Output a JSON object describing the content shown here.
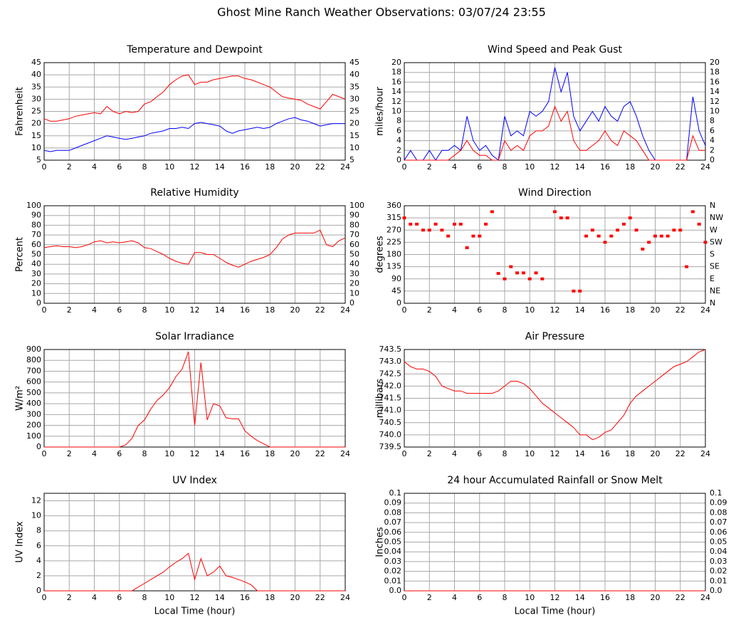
{
  "title": "Ghost Mine Ranch Weather Observations: 03/07/24 23:55",
  "chart_data": [
    {
      "type": "line",
      "title": "Temperature and Dewpoint",
      "y_label": "Fahrenheit",
      "right_axis": true,
      "grid": true,
      "x": [
        0,
        0.5,
        1,
        1.5,
        2,
        2.5,
        3,
        3.5,
        4,
        4.5,
        5,
        5.5,
        6,
        6.5,
        7,
        7.5,
        8,
        8.5,
        9,
        9.5,
        10,
        10.5,
        11,
        11.5,
        12,
        12.5,
        13,
        13.5,
        14,
        14.5,
        15,
        15.5,
        16,
        16.5,
        17,
        17.5,
        18,
        18.5,
        19,
        19.5,
        20,
        20.5,
        21,
        21.5,
        22,
        22.5,
        23,
        23.5,
        24
      ],
      "xlim": [
        0,
        24
      ],
      "xticks": [
        0,
        2,
        4,
        6,
        8,
        10,
        12,
        14,
        16,
        18,
        20,
        22,
        24
      ],
      "ylim": [
        5,
        45
      ],
      "yticks": [
        5,
        10,
        15,
        20,
        25,
        30,
        35,
        40,
        45
      ],
      "series": [
        {
          "color": "#ff0000",
          "values": [
            22,
            21,
            21,
            21.5,
            22,
            23,
            23.5,
            24,
            24.5,
            24,
            27,
            25,
            24,
            25,
            24.5,
            25,
            28,
            29,
            31,
            33,
            36,
            38,
            39.5,
            40,
            36,
            37,
            37,
            38,
            38.5,
            39,
            39.5,
            39.5,
            38.5,
            38,
            37,
            36,
            35,
            33,
            31,
            30.5,
            30,
            29.5,
            28,
            27,
            26,
            29,
            32,
            31,
            30
          ]
        },
        {
          "color": "#0000ff",
          "values": [
            9,
            8.5,
            9,
            9,
            9,
            10,
            11,
            12,
            13,
            14,
            15,
            14.5,
            14,
            13.5,
            14,
            14.5,
            15,
            16,
            16.5,
            17,
            18,
            18,
            18.5,
            18,
            20,
            20.5,
            20,
            19.5,
            19,
            17,
            16,
            17,
            17.5,
            18,
            18.5,
            18,
            18.5,
            20,
            21,
            22,
            22.5,
            21.5,
            21,
            20,
            19,
            19.5,
            20,
            20,
            20
          ]
        }
      ]
    },
    {
      "type": "line",
      "title": "Wind Speed and Peak Gust",
      "y_label": "miles/hour",
      "right_axis": true,
      "grid": true,
      "x": [
        0,
        0.5,
        1,
        1.5,
        2,
        2.5,
        3,
        3.5,
        4,
        4.5,
        5,
        5.5,
        6,
        6.5,
        7,
        7.5,
        8,
        8.5,
        9,
        9.5,
        10,
        10.5,
        11,
        11.5,
        12,
        12.5,
        13,
        13.5,
        14,
        14.5,
        15,
        15.5,
        16,
        16.5,
        17,
        17.5,
        18,
        18.5,
        19,
        19.5,
        20,
        20.5,
        21,
        21.5,
        22,
        22.5,
        23,
        23.5,
        24
      ],
      "xlim": [
        0,
        24
      ],
      "xticks": [
        0,
        2,
        4,
        6,
        8,
        10,
        12,
        14,
        16,
        18,
        20,
        22,
        24
      ],
      "ylim": [
        0,
        20
      ],
      "yticks": [
        0,
        2,
        4,
        6,
        8,
        10,
        12,
        14,
        16,
        18,
        20
      ],
      "series": [
        {
          "color": "#0000ff",
          "values": [
            0,
            2,
            0,
            0,
            2,
            0,
            2,
            2,
            3,
            2,
            9,
            4,
            2,
            3,
            1,
            0,
            9,
            5,
            6,
            5,
            10,
            9,
            10,
            12,
            19,
            14,
            18,
            9,
            6,
            8,
            10,
            8,
            11,
            9,
            8,
            11,
            12,
            9,
            5,
            2,
            0,
            0,
            0,
            0,
            0,
            0,
            13,
            6,
            3
          ]
        },
        {
          "color": "#ff0000",
          "values": [
            0,
            0,
            0,
            0,
            0,
            0,
            0,
            0,
            1,
            2,
            4,
            2,
            1,
            1,
            0,
            0,
            4,
            2,
            3,
            2,
            5,
            6,
            6,
            7,
            11,
            8,
            10,
            4,
            2,
            2,
            3,
            4,
            6,
            4,
            3,
            6,
            5,
            4,
            2,
            0,
            0,
            0,
            0,
            0,
            0,
            0,
            5,
            2,
            2
          ]
        }
      ]
    },
    {
      "type": "line",
      "title": "Relative Humidity",
      "y_label": "Percent",
      "right_axis": true,
      "grid": true,
      "x": [
        0,
        0.5,
        1,
        1.5,
        2,
        2.5,
        3,
        3.5,
        4,
        4.5,
        5,
        5.5,
        6,
        6.5,
        7,
        7.5,
        8,
        8.5,
        9,
        9.5,
        10,
        10.5,
        11,
        11.5,
        12,
        12.5,
        13,
        13.5,
        14,
        14.5,
        15,
        15.5,
        16,
        16.5,
        17,
        17.5,
        18,
        18.5,
        19,
        19.5,
        20,
        20.5,
        21,
        21.5,
        22,
        22.5,
        23,
        23.5,
        24
      ],
      "xlim": [
        0,
        24
      ],
      "xticks": [
        0,
        2,
        4,
        6,
        8,
        10,
        12,
        14,
        16,
        18,
        20,
        22,
        24
      ],
      "ylim": [
        0,
        100
      ],
      "yticks": [
        0,
        10,
        20,
        30,
        40,
        50,
        60,
        70,
        80,
        90,
        100
      ],
      "series": [
        {
          "color": "#ff0000",
          "values": [
            57,
            58,
            59,
            58,
            58,
            57,
            58,
            60,
            63,
            64,
            62,
            63,
            62,
            63,
            64,
            62,
            57,
            56,
            53,
            50,
            46,
            43,
            41,
            40,
            52,
            52,
            50,
            50,
            46,
            42,
            39,
            37,
            40,
            43,
            45,
            47,
            50,
            57,
            66,
            70,
            72,
            72,
            72,
            72,
            75,
            60,
            58,
            64,
            67
          ]
        }
      ]
    },
    {
      "type": "scatter",
      "title": "Wind Direction",
      "y_label": "degrees",
      "grid": true,
      "x": [
        0,
        0.5,
        1,
        1.5,
        2,
        2.5,
        3,
        3.5,
        4,
        4.5,
        5,
        5.5,
        6,
        6.5,
        7,
        7.5,
        8,
        8.5,
        9,
        9.5,
        10,
        10.5,
        11,
        11.5,
        12,
        12.5,
        13,
        13.5,
        14,
        14.5,
        15,
        15.5,
        16,
        16.5,
        17,
        17.5,
        18,
        18.5,
        19,
        19.5,
        20,
        20.5,
        21,
        21.5,
        22,
        22.5,
        23,
        23.5,
        24
      ],
      "xlim": [
        0,
        24
      ],
      "xticks": [
        0,
        2,
        4,
        6,
        8,
        10,
        12,
        14,
        16,
        18,
        20,
        22,
        24
      ],
      "ylim": [
        0,
        360
      ],
      "yticks": [
        0,
        45,
        90,
        135,
        180,
        225,
        270,
        315,
        360
      ],
      "y2lim": [
        0,
        360
      ],
      "y2ticks": [
        {
          "value": 0,
          "label": "N"
        },
        {
          "value": 45,
          "label": "NE"
        },
        {
          "value": 90,
          "label": "E"
        },
        {
          "value": 135,
          "label": "SE"
        },
        {
          "value": 180,
          "label": "S"
        },
        {
          "value": 225,
          "label": "SW"
        },
        {
          "value": 270,
          "label": "W"
        },
        {
          "value": 315,
          "label": "NW"
        },
        {
          "value": 360,
          "label": "N"
        }
      ],
      "series": [
        {
          "color": "#ff0000",
          "values": [
            315,
            292,
            292,
            270,
            270,
            292,
            270,
            248,
            292,
            292,
            205,
            248,
            248,
            292,
            338,
            110,
            90,
            135,
            112,
            112,
            90,
            112,
            90,
            null,
            338,
            315,
            315,
            45,
            45,
            248,
            270,
            248,
            225,
            248,
            270,
            292,
            315,
            270,
            200,
            225,
            248,
            248,
            248,
            270,
            270,
            135,
            338,
            292,
            225
          ]
        }
      ]
    },
    {
      "type": "line",
      "title": "Solar Irradiance",
      "y_label": "W/m²",
      "grid": true,
      "x": [
        0,
        0.5,
        1,
        1.5,
        2,
        2.5,
        3,
        3.5,
        4,
        4.5,
        5,
        5.5,
        6,
        6.5,
        7,
        7.5,
        8,
        8.5,
        9,
        9.5,
        10,
        10.5,
        11,
        11.5,
        12,
        12.5,
        13,
        13.5,
        14,
        14.5,
        15,
        15.5,
        16,
        16.5,
        17,
        17.5,
        18,
        18.5,
        19,
        19.5,
        20,
        20.5,
        21,
        21.5,
        22,
        22.5,
        23,
        23.5,
        24
      ],
      "xlim": [
        0,
        24
      ],
      "xticks": [
        0,
        2,
        4,
        6,
        8,
        10,
        12,
        14,
        16,
        18,
        20,
        22,
        24
      ],
      "ylim": [
        0,
        900
      ],
      "yticks": [
        0,
        100,
        200,
        300,
        400,
        500,
        600,
        700,
        800,
        900
      ],
      "series": [
        {
          "color": "#ff0000",
          "values": [
            0,
            0,
            0,
            0,
            0,
            0,
            0,
            0,
            0,
            0,
            0,
            0,
            0,
            20,
            80,
            200,
            250,
            350,
            430,
            480,
            550,
            650,
            720,
            880,
            200,
            780,
            250,
            400,
            380,
            270,
            260,
            260,
            150,
            100,
            60,
            30,
            0,
            0,
            0,
            0,
            0,
            0,
            0,
            0,
            0,
            0,
            0,
            0,
            0
          ]
        }
      ]
    },
    {
      "type": "line",
      "title": "Air Pressure",
      "y_label": "millibars",
      "grid": true,
      "x": [
        0,
        0.5,
        1,
        1.5,
        2,
        2.5,
        3,
        3.5,
        4,
        4.5,
        5,
        5.5,
        6,
        6.5,
        7,
        7.5,
        8,
        8.5,
        9,
        9.5,
        10,
        10.5,
        11,
        11.5,
        12,
        12.5,
        13,
        13.5,
        14,
        14.5,
        15,
        15.5,
        16,
        16.5,
        17,
        17.5,
        18,
        18.5,
        19,
        19.5,
        20,
        20.5,
        21,
        21.5,
        22,
        22.5,
        23,
        23.5,
        24
      ],
      "xlim": [
        0,
        24
      ],
      "xticks": [
        0,
        2,
        4,
        6,
        8,
        10,
        12,
        14,
        16,
        18,
        20,
        22,
        24
      ],
      "ylim": [
        739.5,
        743.5
      ],
      "yticks": [
        739.5,
        {
          "value": 740,
          "label": "740.0"
        },
        740.5,
        {
          "value": 741,
          "label": "741.0"
        },
        741.5,
        {
          "value": 742,
          "label": "742.0"
        },
        742.5,
        {
          "value": 743,
          "label": "743.0"
        },
        743.5
      ],
      "series": [
        {
          "color": "#ff0000",
          "values": [
            743.0,
            742.8,
            742.7,
            742.7,
            742.6,
            742.4,
            742.0,
            741.9,
            741.8,
            741.8,
            741.7,
            741.7,
            741.7,
            741.7,
            741.7,
            741.8,
            742.0,
            742.2,
            742.2,
            742.1,
            741.9,
            741.6,
            741.3,
            741.1,
            740.9,
            740.7,
            740.5,
            740.3,
            740.0,
            740.0,
            739.8,
            739.9,
            740.1,
            740.2,
            740.5,
            740.8,
            741.3,
            741.6,
            741.8,
            742.0,
            742.2,
            742.4,
            742.6,
            742.8,
            742.9,
            743.0,
            743.2,
            743.4,
            743.5
          ]
        }
      ]
    },
    {
      "type": "line",
      "title": "UV Index",
      "y_label": "UV Index",
      "x_label": "Local Time (hour)",
      "grid": true,
      "x": [
        0,
        0.5,
        1,
        1.5,
        2,
        2.5,
        3,
        3.5,
        4,
        4.5,
        5,
        5.5,
        6,
        6.5,
        7,
        7.5,
        8,
        8.5,
        9,
        9.5,
        10,
        10.5,
        11,
        11.5,
        12,
        12.5,
        13,
        13.5,
        14,
        14.5,
        15,
        15.5,
        16,
        16.5,
        17,
        17.5,
        18,
        18.5,
        19,
        19.5,
        20,
        20.5,
        21,
        21.5,
        22,
        22.5,
        23,
        23.5,
        24
      ],
      "xlim": [
        0,
        24
      ],
      "xticks": [
        0,
        2,
        4,
        6,
        8,
        10,
        12,
        14,
        16,
        18,
        20,
        22,
        24
      ],
      "ylim": [
        0,
        13
      ],
      "yticks": [
        0,
        2,
        4,
        6,
        8,
        10,
        12
      ],
      "series": [
        {
          "color": "#ff0000",
          "values": [
            0,
            0,
            0,
            0,
            0,
            0,
            0,
            0,
            0,
            0,
            0,
            0,
            0,
            0,
            0,
            0.5,
            1,
            1.5,
            2,
            2.5,
            3.2,
            3.8,
            4.3,
            5,
            1.5,
            4.3,
            2,
            2.5,
            3.3,
            2,
            1.8,
            1.5,
            1.2,
            0.8,
            0,
            0,
            0,
            0,
            0,
            0,
            0,
            0,
            0,
            0,
            0,
            0,
            0,
            0,
            0
          ]
        }
      ]
    },
    {
      "type": "line",
      "title": "24 hour Accumulated Rainfall or Snow Melt",
      "y_label": "Inches",
      "x_label": "Local Time (hour)",
      "right_axis": true,
      "grid": true,
      "x": [
        0,
        24
      ],
      "xlim": [
        0,
        24
      ],
      "xticks": [
        0,
        2,
        4,
        6,
        8,
        10,
        12,
        14,
        16,
        18,
        20,
        22,
        24
      ],
      "ylim": [
        0,
        0.1
      ],
      "yticks": [
        {
          "value": 0,
          "label": "0.0"
        },
        0.01,
        0.02,
        0.03,
        0.04,
        0.05,
        0.06,
        0.07,
        0.08,
        0.09,
        0.1
      ],
      "series": [
        {
          "color": "#ff0000",
          "values": [
            0,
            0
          ]
        }
      ]
    }
  ]
}
